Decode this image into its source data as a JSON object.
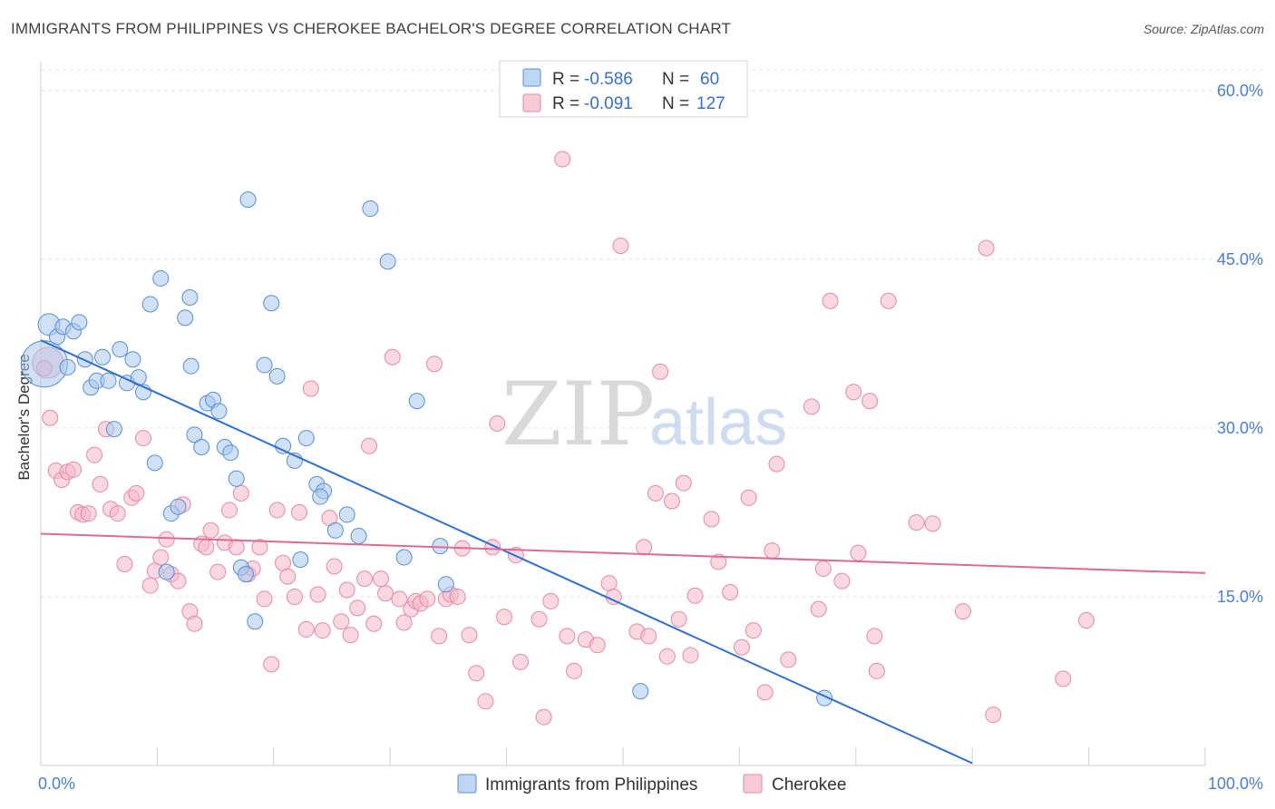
{
  "title": "IMMIGRANTS FROM PHILIPPINES VS CHEROKEE BACHELOR'S DEGREE CORRELATION CHART",
  "source": "Source: ZipAtlas.com",
  "watermark": {
    "zip": "ZIP",
    "atlas": "atlas"
  },
  "colors": {
    "blue_fill": "#a9c8ee",
    "blue_stroke": "#5a8fd6",
    "blue_line": "#2f6fd0",
    "pink_fill": "#f6b8cb",
    "pink_stroke": "#e58aa8",
    "pink_line": "#e06b92",
    "grid": "#e2e2e2",
    "axis_label": "#4a7fcf"
  },
  "legend": {
    "rows": [
      {
        "r_label": "R =",
        "r_value": "-0.586",
        "n_label": "N =",
        "n_value": "60"
      },
      {
        "r_label": "R =",
        "r_value": "-0.091",
        "n_label": "N =",
        "n_value": "127"
      }
    ]
  },
  "bottom_legend": [
    "Immigrants from Philippines",
    "Cherokee"
  ],
  "chart_data": {
    "type": "scatter",
    "title": "IMMIGRANTS FROM PHILIPPINES VS CHEROKEE BACHELOR'S DEGREE CORRELATION CHART",
    "xlabel": "",
    "ylabel": "Bachelor's Degree",
    "xlim": [
      0,
      100
    ],
    "ylim": [
      0,
      62
    ],
    "x_tick_labels": [
      "0.0%",
      "100.0%"
    ],
    "y_ticks": [
      15,
      30,
      45,
      60
    ],
    "y_tick_labels": [
      "15.0%",
      "30.0%",
      "45.0%",
      "60.0%"
    ],
    "grid": true,
    "legend_position": "top-center",
    "series": [
      {
        "name": "Immigrants from Philippines",
        "R": -0.586,
        "N": 60,
        "trend": {
          "x": [
            0,
            80
          ],
          "y": [
            37.8,
            0.2
          ]
        },
        "points": [
          [
            0.3,
            35.7,
            3
          ],
          [
            0.7,
            39.2,
            1.4
          ],
          [
            1.4,
            38.1,
            1
          ],
          [
            1.9,
            39.0,
            1
          ],
          [
            2.3,
            35.4,
            1
          ],
          [
            2.8,
            38.6,
            1
          ],
          [
            3.3,
            39.4,
            1
          ],
          [
            3.8,
            36.1,
            1
          ],
          [
            4.3,
            33.6,
            1
          ],
          [
            4.8,
            34.2,
            1
          ],
          [
            5.3,
            36.3,
            1
          ],
          [
            5.8,
            34.2,
            1
          ],
          [
            6.3,
            29.9,
            1
          ],
          [
            6.8,
            37.0,
            1
          ],
          [
            7.4,
            34.0,
            1
          ],
          [
            7.9,
            36.1,
            1
          ],
          [
            8.4,
            34.5,
            1
          ],
          [
            8.8,
            33.2,
            1
          ],
          [
            9.4,
            41.0,
            1
          ],
          [
            9.8,
            26.9,
            1
          ],
          [
            10.3,
            43.3,
            1
          ],
          [
            10.8,
            17.2,
            1
          ],
          [
            11.2,
            22.4,
            1
          ],
          [
            11.8,
            23.0,
            1
          ],
          [
            12.4,
            39.8,
            1
          ],
          [
            12.8,
            41.6,
            1
          ],
          [
            13.2,
            29.4,
            1
          ],
          [
            13.8,
            28.3,
            1
          ],
          [
            14.3,
            32.2,
            1
          ],
          [
            14.8,
            32.5,
            1
          ],
          [
            15.3,
            31.5,
            1
          ],
          [
            15.8,
            28.3,
            1
          ],
          [
            16.3,
            27.8,
            1
          ],
          [
            16.8,
            25.5,
            1
          ],
          [
            17.2,
            17.6,
            1
          ],
          [
            17.6,
            17.0,
            1
          ],
          [
            17.8,
            50.3,
            1
          ],
          [
            18.4,
            12.8,
            1
          ],
          [
            19.2,
            35.6,
            1
          ],
          [
            19.8,
            41.1,
            1
          ],
          [
            20.3,
            34.6,
            1
          ],
          [
            20.8,
            28.4,
            1
          ],
          [
            21.8,
            27.1,
            1
          ],
          [
            22.3,
            18.3,
            1
          ],
          [
            22.8,
            29.1,
            1
          ],
          [
            23.7,
            25.0,
            1
          ],
          [
            24.3,
            24.4,
            1
          ],
          [
            24.0,
            23.9,
            1
          ],
          [
            25.3,
            20.9,
            1
          ],
          [
            26.3,
            22.3,
            1
          ],
          [
            27.3,
            20.4,
            1
          ],
          [
            28.3,
            49.5,
            1
          ],
          [
            29.8,
            44.8,
            1
          ],
          [
            31.2,
            18.5,
            1
          ],
          [
            32.3,
            32.4,
            1
          ],
          [
            34.3,
            19.5,
            1
          ],
          [
            34.8,
            16.1,
            1
          ],
          [
            51.5,
            6.6,
            1
          ],
          [
            67.3,
            6.0,
            1
          ],
          [
            12.9,
            35.5,
            1
          ]
        ]
      },
      {
        "name": "Cherokee",
        "R": -0.091,
        "N": 127,
        "trend": {
          "x": [
            0,
            100
          ],
          "y": [
            20.6,
            17.1
          ]
        },
        "points": [
          [
            0.6,
            35.8,
            2
          ],
          [
            0.8,
            30.9,
            1
          ],
          [
            1.3,
            26.2,
            1
          ],
          [
            1.8,
            25.4,
            1
          ],
          [
            2.3,
            26.1,
            1
          ],
          [
            2.8,
            26.3,
            1
          ],
          [
            3.2,
            22.5,
            1
          ],
          [
            3.6,
            22.3,
            1
          ],
          [
            4.1,
            22.4,
            1
          ],
          [
            4.6,
            27.6,
            1
          ],
          [
            5.1,
            25.0,
            1
          ],
          [
            5.6,
            29.9,
            1
          ],
          [
            6.0,
            22.8,
            1
          ],
          [
            6.6,
            22.4,
            1
          ],
          [
            7.2,
            17.9,
            1
          ],
          [
            7.8,
            23.8,
            1
          ],
          [
            8.2,
            24.2,
            1
          ],
          [
            8.8,
            29.1,
            1
          ],
          [
            9.4,
            16.0,
            1
          ],
          [
            9.8,
            17.3,
            1
          ],
          [
            10.3,
            18.5,
            1
          ],
          [
            10.8,
            20.1,
            1
          ],
          [
            11.2,
            17.0,
            1
          ],
          [
            11.8,
            16.4,
            1
          ],
          [
            12.2,
            23.2,
            1
          ],
          [
            12.8,
            13.7,
            1
          ],
          [
            13.2,
            12.6,
            1
          ],
          [
            13.8,
            19.7,
            1
          ],
          [
            14.2,
            19.4,
            1
          ],
          [
            14.6,
            20.9,
            1
          ],
          [
            15.2,
            17.2,
            1
          ],
          [
            15.8,
            19.8,
            1
          ],
          [
            16.2,
            22.7,
            1
          ],
          [
            16.8,
            19.4,
            1
          ],
          [
            17.2,
            24.2,
            1
          ],
          [
            17.8,
            17.0,
            1
          ],
          [
            18.2,
            17.5,
            1
          ],
          [
            18.8,
            19.4,
            1
          ],
          [
            19.2,
            14.8,
            1
          ],
          [
            19.8,
            9.0,
            1
          ],
          [
            20.3,
            22.7,
            1
          ],
          [
            20.8,
            18.0,
            1
          ],
          [
            21.2,
            16.8,
            1
          ],
          [
            21.8,
            15.0,
            1
          ],
          [
            22.2,
            22.5,
            1
          ],
          [
            22.8,
            12.1,
            1
          ],
          [
            23.2,
            33.5,
            1
          ],
          [
            23.8,
            15.2,
            1
          ],
          [
            24.2,
            12.0,
            1
          ],
          [
            24.8,
            22.0,
            1
          ],
          [
            25.2,
            17.7,
            1
          ],
          [
            25.8,
            12.8,
            1
          ],
          [
            26.3,
            15.6,
            1
          ],
          [
            26.6,
            11.6,
            1
          ],
          [
            27.2,
            14.0,
            1
          ],
          [
            27.8,
            16.6,
            1
          ],
          [
            28.2,
            28.4,
            1
          ],
          [
            28.6,
            12.6,
            1
          ],
          [
            29.2,
            16.6,
            1
          ],
          [
            29.6,
            15.3,
            1
          ],
          [
            30.2,
            36.3,
            1
          ],
          [
            30.8,
            14.8,
            1
          ],
          [
            31.2,
            12.7,
            1
          ],
          [
            31.8,
            13.9,
            1
          ],
          [
            32.2,
            14.6,
            1
          ],
          [
            32.6,
            14.4,
            1
          ],
          [
            33.2,
            14.8,
            1
          ],
          [
            33.8,
            35.7,
            1
          ],
          [
            34.2,
            11.5,
            1
          ],
          [
            34.8,
            14.8,
            1
          ],
          [
            35.2,
            15.2,
            1
          ],
          [
            35.8,
            15.0,
            1
          ],
          [
            36.2,
            19.3,
            1
          ],
          [
            36.8,
            11.6,
            1
          ],
          [
            37.4,
            8.2,
            1
          ],
          [
            38.8,
            19.4,
            1
          ],
          [
            38.2,
            5.7,
            1
          ],
          [
            39.2,
            30.4,
            1
          ],
          [
            39.8,
            13.2,
            1
          ],
          [
            40.8,
            18.7,
            1
          ],
          [
            41.2,
            9.2,
            1
          ],
          [
            42.8,
            13.0,
            1
          ],
          [
            43.2,
            4.3,
            1
          ],
          [
            43.8,
            14.6,
            1
          ],
          [
            44.8,
            53.9,
            1
          ],
          [
            45.2,
            11.5,
            1
          ],
          [
            45.8,
            8.4,
            1
          ],
          [
            46.8,
            11.2,
            1
          ],
          [
            47.8,
            10.7,
            1
          ],
          [
            48.8,
            16.2,
            1
          ],
          [
            49.2,
            15.0,
            1
          ],
          [
            49.8,
            46.2,
            1
          ],
          [
            51.2,
            11.9,
            1
          ],
          [
            51.8,
            19.4,
            1
          ],
          [
            52.2,
            11.5,
            1
          ],
          [
            52.8,
            24.2,
            1
          ],
          [
            53.2,
            35.0,
            1
          ],
          [
            53.8,
            9.7,
            1
          ],
          [
            54.2,
            23.5,
            1
          ],
          [
            54.8,
            13.0,
            1
          ],
          [
            55.2,
            25.1,
            1
          ],
          [
            55.8,
            9.8,
            1
          ],
          [
            56.2,
            15.1,
            1
          ],
          [
            57.6,
            21.9,
            1
          ],
          [
            58.2,
            18.1,
            1
          ],
          [
            59.2,
            15.4,
            1
          ],
          [
            60.2,
            10.5,
            1
          ],
          [
            60.8,
            23.8,
            1
          ],
          [
            61.2,
            12.0,
            1
          ],
          [
            62.2,
            6.5,
            1
          ],
          [
            62.8,
            19.1,
            1
          ],
          [
            63.2,
            26.8,
            1
          ],
          [
            64.2,
            9.4,
            1
          ],
          [
            66.2,
            31.9,
            1
          ],
          [
            66.8,
            13.9,
            1
          ],
          [
            67.2,
            17.5,
            1
          ],
          [
            67.8,
            41.3,
            1
          ],
          [
            68.8,
            16.4,
            1
          ],
          [
            69.8,
            33.2,
            1
          ],
          [
            70.2,
            18.9,
            1
          ],
          [
            71.2,
            32.4,
            1
          ],
          [
            71.6,
            11.5,
            1
          ],
          [
            71.8,
            8.4,
            1
          ],
          [
            72.8,
            41.3,
            1
          ],
          [
            75.2,
            21.6,
            1
          ],
          [
            76.6,
            21.5,
            1
          ],
          [
            79.2,
            13.7,
            1
          ],
          [
            81.8,
            4.5,
            1
          ],
          [
            81.2,
            46.0,
            1
          ],
          [
            87.8,
            7.7,
            1
          ],
          [
            89.8,
            12.9,
            1
          ],
          [
            0.3,
            35.3,
            1
          ]
        ]
      }
    ]
  }
}
